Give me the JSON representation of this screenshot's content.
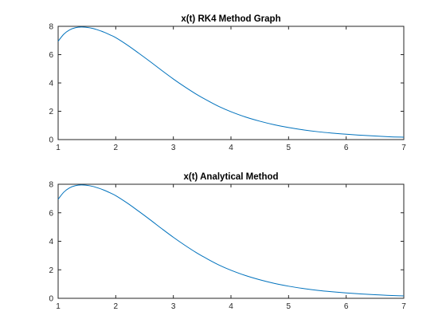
{
  "chart_data": [
    {
      "type": "line",
      "title": "x(t) RK4 Method Graph",
      "xlabel": "",
      "ylabel": "",
      "xlim": [
        1,
        7
      ],
      "ylim": [
        0,
        8
      ],
      "xticks": [
        1,
        2,
        3,
        4,
        5,
        6,
        7
      ],
      "yticks": [
        0,
        2,
        4,
        6,
        8
      ],
      "grid": false,
      "color": "#0072BD",
      "series": [
        {
          "x": [
            1.0,
            1.1,
            1.2,
            1.3,
            1.4,
            1.5,
            1.6,
            1.7,
            1.8,
            1.9,
            2.0,
            2.2,
            2.4,
            2.6,
            2.8,
            3.0,
            3.2,
            3.4,
            3.6,
            3.8,
            4.0,
            4.25,
            4.5,
            4.75,
            5.0,
            5.25,
            5.5,
            5.75,
            6.0,
            6.25,
            6.5,
            6.75,
            7.0
          ],
          "y": [
            6.95,
            7.45,
            7.75,
            7.9,
            7.95,
            7.92,
            7.85,
            7.73,
            7.58,
            7.4,
            7.2,
            6.68,
            6.1,
            5.5,
            4.88,
            4.28,
            3.72,
            3.2,
            2.74,
            2.32,
            1.97,
            1.6,
            1.3,
            1.05,
            0.85,
            0.69,
            0.56,
            0.46,
            0.38,
            0.31,
            0.25,
            0.2,
            0.17
          ]
        }
      ]
    },
    {
      "type": "line",
      "title": "x(t) Analytical Method",
      "xlabel": "",
      "ylabel": "",
      "xlim": [
        1,
        7
      ],
      "ylim": [
        0,
        8
      ],
      "xticks": [
        1,
        2,
        3,
        4,
        5,
        6,
        7
      ],
      "yticks": [
        0,
        2,
        4,
        6,
        8
      ],
      "grid": false,
      "color": "#0072BD",
      "series": [
        {
          "x": [
            1.0,
            1.1,
            1.2,
            1.3,
            1.4,
            1.5,
            1.6,
            1.7,
            1.8,
            1.9,
            2.0,
            2.2,
            2.4,
            2.6,
            2.8,
            3.0,
            3.2,
            3.4,
            3.6,
            3.8,
            4.0,
            4.25,
            4.5,
            4.75,
            5.0,
            5.25,
            5.5,
            5.75,
            6.0,
            6.25,
            6.5,
            6.75,
            7.0
          ],
          "y": [
            6.95,
            7.45,
            7.75,
            7.9,
            7.95,
            7.92,
            7.85,
            7.73,
            7.58,
            7.4,
            7.2,
            6.68,
            6.1,
            5.5,
            4.88,
            4.28,
            3.72,
            3.2,
            2.74,
            2.32,
            1.97,
            1.6,
            1.3,
            1.05,
            0.85,
            0.69,
            0.56,
            0.46,
            0.38,
            0.31,
            0.25,
            0.2,
            0.17
          ]
        }
      ]
    }
  ]
}
